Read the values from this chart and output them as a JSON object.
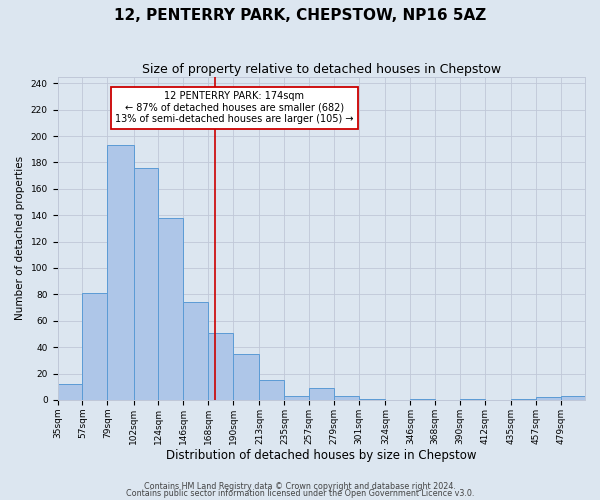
{
  "title": "12, PENTERRY PARK, CHEPSTOW, NP16 5AZ",
  "subtitle": "Size of property relative to detached houses in Chepstow",
  "xlabel": "Distribution of detached houses by size in Chepstow",
  "ylabel": "Number of detached properties",
  "bar_labels": [
    "35sqm",
    "57sqm",
    "79sqm",
    "102sqm",
    "124sqm",
    "146sqm",
    "168sqm",
    "190sqm",
    "213sqm",
    "235sqm",
    "257sqm",
    "279sqm",
    "301sqm",
    "324sqm",
    "346sqm",
    "368sqm",
    "390sqm",
    "412sqm",
    "435sqm",
    "457sqm",
    "479sqm"
  ],
  "bar_heights": [
    12,
    81,
    193,
    176,
    138,
    74,
    51,
    35,
    15,
    3,
    9,
    3,
    1,
    0,
    1,
    0,
    1,
    0,
    1,
    2,
    3
  ],
  "bar_edges": [
    35,
    57,
    79,
    102,
    124,
    146,
    168,
    190,
    213,
    235,
    257,
    279,
    301,
    324,
    346,
    368,
    390,
    412,
    435,
    457,
    479,
    500
  ],
  "bar_color": "#aec6e8",
  "bar_edge_color": "#5b9bd5",
  "vline_x": 174,
  "vline_color": "#cc0000",
  "annotation_box_text": "12 PENTERRY PARK: 174sqm\n← 87% of detached houses are smaller (682)\n13% of semi-detached houses are larger (105) →",
  "annotation_box_color": "#cc0000",
  "ylim": [
    0,
    245
  ],
  "yticks": [
    0,
    20,
    40,
    60,
    80,
    100,
    120,
    140,
    160,
    180,
    200,
    220,
    240
  ],
  "grid_color": "#c0c8d8",
  "background_color": "#dce6f0",
  "footer_line1": "Contains HM Land Registry data © Crown copyright and database right 2024.",
  "footer_line2": "Contains public sector information licensed under the Open Government Licence v3.0.",
  "title_fontsize": 11,
  "subtitle_fontsize": 9,
  "xlabel_fontsize": 8.5,
  "ylabel_fontsize": 7.5,
  "tick_fontsize": 6.5,
  "annot_fontsize": 7.0
}
